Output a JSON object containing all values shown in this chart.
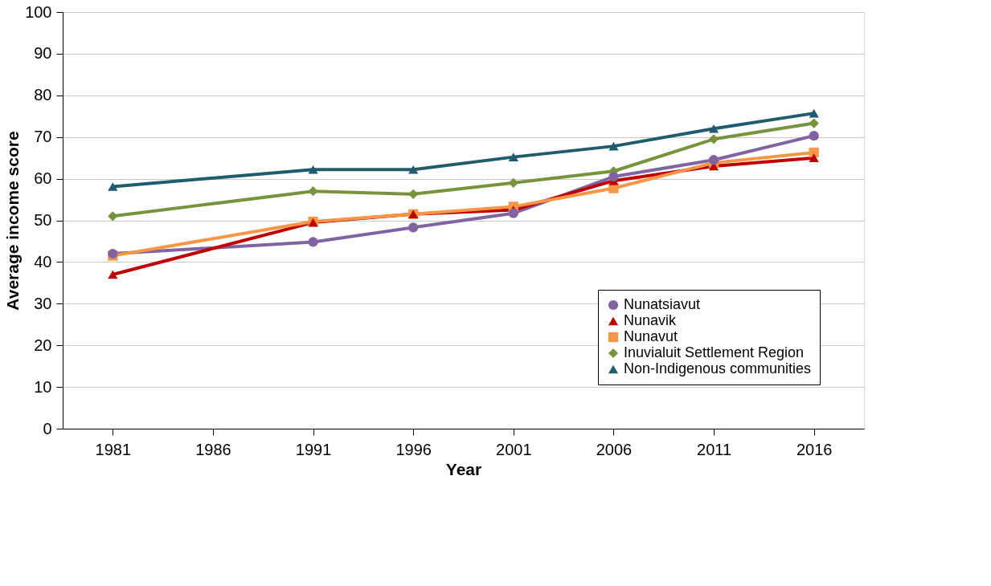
{
  "chart_data": {
    "type": "line",
    "xlabel": "Year",
    "ylabel": "Average income score",
    "x": [
      1981,
      1991,
      1996,
      2001,
      2006,
      2011,
      2016
    ],
    "xlim": [
      1978.5,
      2018.5
    ],
    "xticks": [
      1981,
      1986,
      1991,
      1996,
      2001,
      2006,
      2011,
      2016
    ],
    "ylim": [
      0,
      100
    ],
    "yticks": [
      0,
      10,
      20,
      30,
      40,
      50,
      60,
      70,
      80,
      90,
      100
    ],
    "grid": "y",
    "legend": "bottom right",
    "line_style": "solid",
    "series": [
      {
        "name": "Nunatsiavut",
        "color": "#8064a2",
        "marker": "circle",
        "values": [
          42,
          44.8,
          48.3,
          51.7,
          60.5,
          64.5,
          70.3
        ]
      },
      {
        "name": "Nunavik",
        "color": "#c00000",
        "marker": "triangle",
        "values": [
          37,
          49.5,
          51.5,
          52.5,
          59.5,
          63,
          65
        ]
      },
      {
        "name": "Nunavut",
        "color": "#f79646",
        "marker": "square",
        "values": [
          41.5,
          49.7,
          51.5,
          53.3,
          57.7,
          63.8,
          66.3
        ]
      },
      {
        "name": "Inuvialuit Settlement Region",
        "color": "#77933c",
        "marker": "diamond",
        "values": [
          51,
          57,
          56.3,
          59,
          61.8,
          69.5,
          73.3
        ]
      },
      {
        "name": "Non-Indigenous communities",
        "color": "#1f5c6e",
        "marker": "triangle",
        "values": [
          58.1,
          62.2,
          62.2,
          65.2,
          67.8,
          72,
          75.7
        ]
      }
    ]
  }
}
